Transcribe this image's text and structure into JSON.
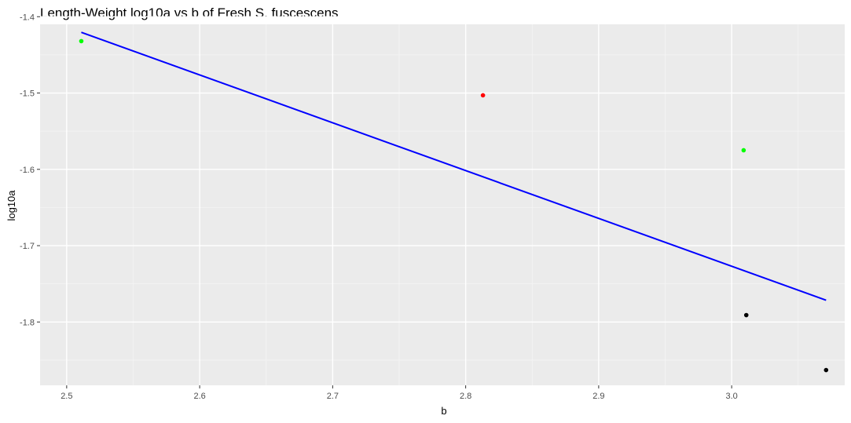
{
  "chart_data": {
    "type": "scatter",
    "title": "Length-Weight log10a vs b of Fresh S. fuscescens",
    "xlabel": "b",
    "ylabel": "log10a",
    "xlim": [
      2.48,
      3.085
    ],
    "ylim": [
      -1.883,
      -1.41
    ],
    "x_ticks": [
      2.5,
      2.6,
      2.7,
      2.8,
      2.9,
      3.0
    ],
    "x_tick_labels": [
      "2.5",
      "2.6",
      "2.7",
      "2.8",
      "2.9",
      "3.0"
    ],
    "y_ticks": [
      -1.4,
      -1.5,
      -1.6,
      -1.7,
      -1.8
    ],
    "y_tick_labels": [
      "-1.4",
      "-1.5",
      "-1.6",
      "-1.7",
      "-1.8"
    ],
    "grid": true,
    "points": [
      {
        "x": 2.511,
        "y": -1.432,
        "color": "#00FF00"
      },
      {
        "x": 2.813,
        "y": -1.503,
        "color": "#FF0000"
      },
      {
        "x": 3.009,
        "y": -1.575,
        "color": "#00FF00"
      },
      {
        "x": 3.011,
        "y": -1.791,
        "color": "#000000"
      },
      {
        "x": 3.071,
        "y": -1.863,
        "color": "#000000"
      }
    ],
    "trend_line": {
      "color": "#0000FF",
      "points": [
        {
          "x": 2.511,
          "y": -1.4205
        },
        {
          "x": 3.071,
          "y": -1.7715
        }
      ]
    }
  }
}
